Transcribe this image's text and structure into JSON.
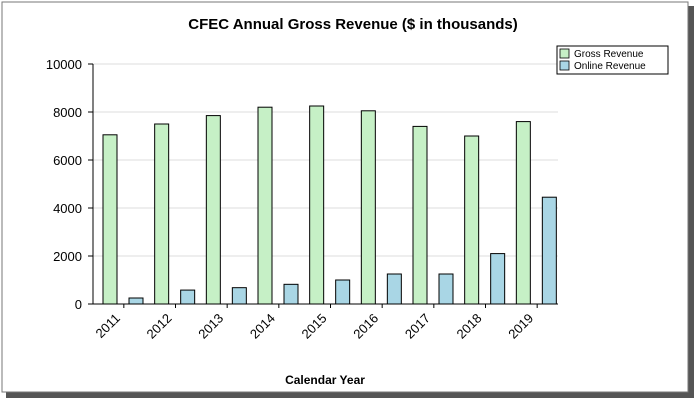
{
  "chart_data": {
    "type": "bar",
    "title": "CFEC Annual Gross Revenue ($ in thousands)",
    "xlabel": "Calendar Year",
    "ylabel": "",
    "categories": [
      "2011",
      "2012",
      "2013",
      "2014",
      "2015",
      "2016",
      "2017",
      "2018",
      "2019"
    ],
    "series": [
      {
        "name": "Gross Revenue",
        "color": "#c6f0c6",
        "values": [
          7050,
          7500,
          7850,
          8200,
          8250,
          8050,
          7400,
          7000,
          7600
        ]
      },
      {
        "name": "Online Revenue",
        "color": "#a9d6e5",
        "values": [
          250,
          580,
          680,
          820,
          1000,
          1250,
          1250,
          2100,
          4450
        ]
      }
    ],
    "ylim": [
      0,
      10000
    ],
    "yticks": [
      0,
      2000,
      4000,
      6000,
      8000,
      10000
    ],
    "grid": true,
    "legend_position": "top-right"
  }
}
